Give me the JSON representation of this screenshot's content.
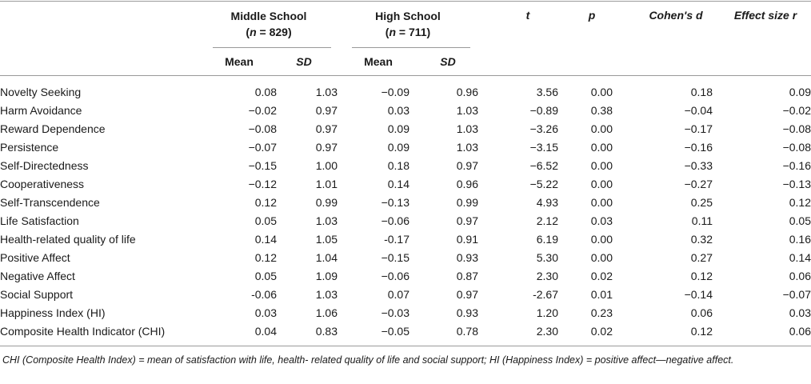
{
  "header": {
    "middle_school": "Middle School",
    "middle_n_prefix": "(",
    "middle_n_var": "n",
    "middle_n_value": " = 829)",
    "high_school": "High School",
    "high_n_prefix": "(",
    "high_n_var": "n",
    "high_n_value": " = 711)",
    "t": "t",
    "p": "p",
    "cohens_d": "Cohen's d",
    "effect_size_r": "Effect size r",
    "mean": "Mean",
    "sd": "SD"
  },
  "rows": [
    {
      "label": "Novelty Seeking",
      "ms_mean": "0.08",
      "ms_sd": "1.03",
      "hs_mean": "−0.09",
      "hs_sd": "0.96",
      "t": "3.56",
      "p": "0.00",
      "d": "0.18",
      "r": "0.09"
    },
    {
      "label": "Harm Avoidance",
      "ms_mean": "−0.02",
      "ms_sd": "0.97",
      "hs_mean": "0.03",
      "hs_sd": "1.03",
      "t": "−0.89",
      "p": "0.38",
      "d": "−0.04",
      "r": "−0.02"
    },
    {
      "label": "Reward Dependence",
      "ms_mean": "−0.08",
      "ms_sd": "0.97",
      "hs_mean": "0.09",
      "hs_sd": "1.03",
      "t": "−3.26",
      "p": "0.00",
      "d": "−0.17",
      "r": "−0.08"
    },
    {
      "label": "Persistence",
      "ms_mean": "−0.07",
      "ms_sd": "0.97",
      "hs_mean": "0.09",
      "hs_sd": "1.03",
      "t": "−3.15",
      "p": "0.00",
      "d": "−0.16",
      "r": "−0.08"
    },
    {
      "label": "Self-Directedness",
      "ms_mean": "−0.15",
      "ms_sd": "1.00",
      "hs_mean": "0.18",
      "hs_sd": "0.97",
      "t": "−6.52",
      "p": "0.00",
      "d": "−0.33",
      "r": "−0.16"
    },
    {
      "label": "Cooperativeness",
      "ms_mean": "−0.12",
      "ms_sd": "1.01",
      "hs_mean": "0.14",
      "hs_sd": "0.96",
      "t": "−5.22",
      "p": "0.00",
      "d": "−0.27",
      "r": "−0.13"
    },
    {
      "label": "Self-Transcendence",
      "ms_mean": "0.12",
      "ms_sd": "0.99",
      "hs_mean": "−0.13",
      "hs_sd": "0.99",
      "t": "4.93",
      "p": "0.00",
      "d": "0.25",
      "r": "0.12"
    },
    {
      "label": "Life Satisfaction",
      "ms_mean": "0.05",
      "ms_sd": "1.03",
      "hs_mean": "−0.06",
      "hs_sd": "0.97",
      "t": "2.12",
      "p": "0.03",
      "d": "0.11",
      "r": "0.05"
    },
    {
      "label": "Health-related quality of life",
      "ms_mean": "0.14",
      "ms_sd": "1.05",
      "hs_mean": "-0.17",
      "hs_sd": "0.91",
      "t": "6.19",
      "p": "0.00",
      "d": "0.32",
      "r": "0.16"
    },
    {
      "label": "Positive Affect",
      "ms_mean": "0.12",
      "ms_sd": "1.04",
      "hs_mean": "−0.15",
      "hs_sd": "0.93",
      "t": "5.30",
      "p": "0.00",
      "d": "0.27",
      "r": "0.14"
    },
    {
      "label": "Negative Affect",
      "ms_mean": "0.05",
      "ms_sd": "1.09",
      "hs_mean": "−0.06",
      "hs_sd": "0.87",
      "t": "2.30",
      "p": "0.02",
      "d": "0.12",
      "r": "0.06"
    },
    {
      "label": "Social Support",
      "ms_mean": "-0.06",
      "ms_sd": "1.03",
      "hs_mean": "0.07",
      "hs_sd": "0.97",
      "t": "-2.67",
      "p": "0.01",
      "d": "−0.14",
      "r": "−0.07"
    },
    {
      "label": "Happiness Index (HI)",
      "ms_mean": "0.03",
      "ms_sd": "1.06",
      "hs_mean": "−0.03",
      "hs_sd": "0.93",
      "t": "1.20",
      "p": "0.23",
      "d": "0.06",
      "r": "0.03"
    },
    {
      "label": "Composite Health Indicator (CHI)",
      "ms_mean": "0.04",
      "ms_sd": "0.83",
      "hs_mean": "−0.05",
      "hs_sd": "0.78",
      "t": "2.30",
      "p": "0.02",
      "d": "0.12",
      "r": "0.06"
    }
  ],
  "footnote": "CHI (Composite Health Index) = mean of satisfaction with life, health- related quality of life and social support; HI (Happiness Index) = positive affect—negative affect."
}
